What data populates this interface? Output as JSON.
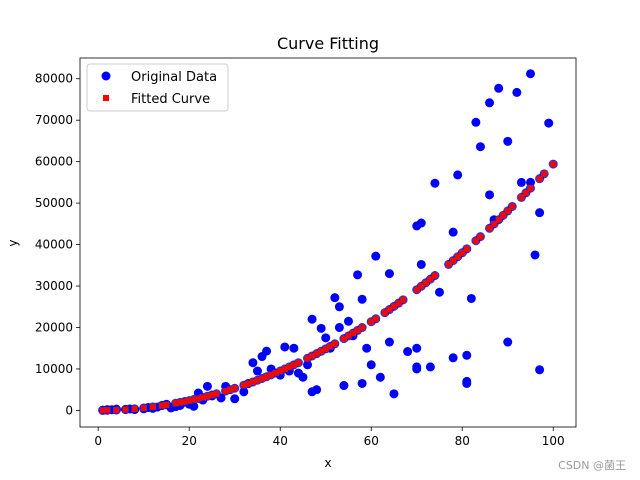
{
  "chart_data": {
    "type": "scatter",
    "title": "Curve Fitting",
    "xlabel": "x",
    "ylabel": "y",
    "xlim": [
      -4,
      105
    ],
    "ylim": [
      -4000,
      85000
    ],
    "xticks": [
      0,
      20,
      40,
      60,
      80,
      100
    ],
    "yticks": [
      0,
      10000,
      20000,
      30000,
      40000,
      50000,
      60000,
      70000,
      80000
    ],
    "grid": false,
    "legend": "top-left",
    "colors": {
      "original": "#0000ff",
      "fitted": "#ff0000",
      "fitted_edge": "#555555"
    },
    "series": [
      {
        "name": "Original Data",
        "marker": "circle",
        "points": [
          [
            1,
            80
          ],
          [
            2,
            200
          ],
          [
            3,
            150
          ],
          [
            4,
            300
          ],
          [
            6,
            250
          ],
          [
            7,
            350
          ],
          [
            8,
            200
          ],
          [
            10,
            400
          ],
          [
            11,
            700
          ],
          [
            12,
            500
          ],
          [
            13,
            800
          ],
          [
            14,
            1200
          ],
          [
            15,
            1500
          ],
          [
            16,
            600
          ],
          [
            17,
            900
          ],
          [
            18,
            1200
          ],
          [
            19,
            2000
          ],
          [
            20,
            1500
          ],
          [
            21,
            1000
          ],
          [
            22,
            4200
          ],
          [
            23,
            2500
          ],
          [
            24,
            5800
          ],
          [
            25,
            3500
          ],
          [
            27,
            3000
          ],
          [
            28,
            5800
          ],
          [
            30,
            2800
          ],
          [
            32,
            4500
          ],
          [
            33,
            6500
          ],
          [
            34,
            11500
          ],
          [
            35,
            9500
          ],
          [
            36,
            13000
          ],
          [
            37,
            14300
          ],
          [
            38,
            10000
          ],
          [
            40,
            8500
          ],
          [
            41,
            15300
          ],
          [
            42,
            9500
          ],
          [
            43,
            15000
          ],
          [
            44,
            9000
          ],
          [
            45,
            8000
          ],
          [
            46,
            11000
          ],
          [
            47,
            22000
          ],
          [
            47,
            4500
          ],
          [
            48,
            5000
          ],
          [
            49,
            19800
          ],
          [
            50,
            17500
          ],
          [
            51,
            15000
          ],
          [
            52,
            27200
          ],
          [
            53,
            25000
          ],
          [
            53,
            20000
          ],
          [
            54,
            6000
          ],
          [
            55,
            21500
          ],
          [
            56,
            18000
          ],
          [
            57,
            32700
          ],
          [
            58,
            26800
          ],
          [
            58,
            6500
          ],
          [
            59,
            15000
          ],
          [
            60,
            11000
          ],
          [
            61,
            37200
          ],
          [
            62,
            8000
          ],
          [
            64,
            33000
          ],
          [
            64,
            16500
          ],
          [
            65,
            4000
          ],
          [
            68,
            14200
          ],
          [
            70,
            44500
          ],
          [
            70,
            15000
          ],
          [
            70,
            10500
          ],
          [
            70,
            10000
          ],
          [
            71,
            45200
          ],
          [
            71,
            35200
          ],
          [
            73,
            10500
          ],
          [
            74,
            54800
          ],
          [
            75,
            28500
          ],
          [
            78,
            43000
          ],
          [
            78,
            12700
          ],
          [
            79,
            56800
          ],
          [
            81,
            13300
          ],
          [
            81,
            7000
          ],
          [
            81,
            6500
          ],
          [
            82,
            27000
          ],
          [
            83,
            69500
          ],
          [
            84,
            63600
          ],
          [
            86,
            74200
          ],
          [
            86,
            52000
          ],
          [
            87,
            46000
          ],
          [
            88,
            77700
          ],
          [
            90,
            64900
          ],
          [
            90,
            16500
          ],
          [
            92,
            76700
          ],
          [
            93,
            55000
          ],
          [
            95,
            81200
          ],
          [
            95,
            55000
          ],
          [
            96,
            37500
          ],
          [
            97,
            47700
          ],
          [
            97,
            9800
          ],
          [
            99,
            69300
          ]
        ]
      },
      {
        "name": "Fitted Curve",
        "marker": "square",
        "points": [
          [
            1,
            6
          ],
          [
            2,
            24
          ],
          [
            4,
            95
          ],
          [
            6,
            214
          ],
          [
            8,
            380
          ],
          [
            10,
            594
          ],
          [
            12,
            856
          ],
          [
            14,
            1165
          ],
          [
            15,
            1337
          ],
          [
            17,
            1717
          ],
          [
            18,
            1925
          ],
          [
            19,
            2145
          ],
          [
            20,
            2376
          ],
          [
            21,
            2620
          ],
          [
            22,
            2875
          ],
          [
            23,
            3142
          ],
          [
            24,
            3422
          ],
          [
            25,
            3713
          ],
          [
            26,
            4016
          ],
          [
            28,
            4657
          ],
          [
            29,
            4995
          ],
          [
            30,
            5346
          ],
          [
            32,
            6083
          ],
          [
            33,
            6469
          ],
          [
            34,
            6867
          ],
          [
            35,
            7277
          ],
          [
            36,
            7699
          ],
          [
            37,
            8133
          ],
          [
            38,
            8579
          ],
          [
            39,
            9036
          ],
          [
            40,
            9506
          ],
          [
            41,
            9987
          ],
          [
            42,
            10481
          ],
          [
            43,
            10986
          ],
          [
            44,
            11503
          ],
          [
            46,
            12573
          ],
          [
            47,
            13126
          ],
          [
            48,
            13690
          ],
          [
            49,
            14265
          ],
          [
            50,
            14853
          ],
          [
            51,
            15453
          ],
          [
            52,
            16065
          ],
          [
            54,
            17324
          ],
          [
            55,
            17971
          ],
          [
            56,
            18631
          ],
          [
            57,
            19302
          ],
          [
            58,
            19985
          ],
          [
            60,
            21387
          ],
          [
            61,
            22106
          ],
          [
            63,
            23579
          ],
          [
            64,
            24333
          ],
          [
            65,
            25099
          ],
          [
            66,
            25876
          ],
          [
            67,
            26666
          ],
          [
            70,
            29107
          ],
          [
            71,
            29945
          ],
          [
            72,
            30795
          ],
          [
            73,
            31657
          ],
          [
            74,
            32531
          ],
          [
            77,
            35222
          ],
          [
            78,
            36143
          ],
          [
            79,
            37076
          ],
          [
            80,
            38020
          ],
          [
            81,
            38977
          ],
          [
            83,
            40925
          ],
          [
            84,
            41916
          ],
          [
            86,
            43935
          ],
          [
            87,
            44962
          ],
          [
            88,
            46001
          ],
          [
            89,
            47052
          ],
          [
            90,
            48115
          ],
          [
            91,
            49190
          ],
          [
            93,
            51376
          ],
          [
            94,
            52488
          ],
          [
            95,
            53612
          ],
          [
            97,
            55896
          ],
          [
            98,
            57057
          ],
          [
            100,
            59406
          ]
        ]
      }
    ]
  },
  "watermark": "CSDN @菌王"
}
